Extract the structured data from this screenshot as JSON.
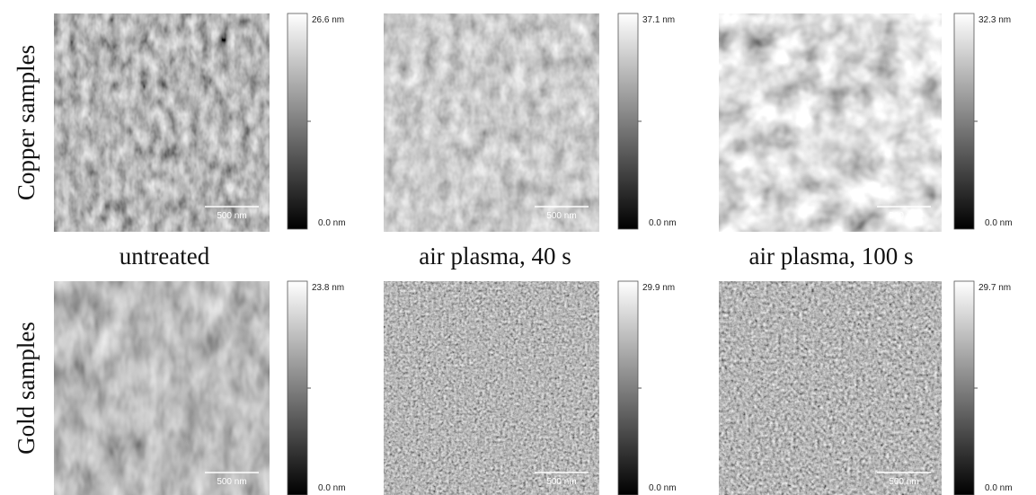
{
  "columns": [
    "untreated",
    "air plasma, 40 s",
    "air plasma, 100 s"
  ],
  "rows": [
    {
      "label": "Copper samples",
      "panels": [
        {
          "scale_bar": "500 nm",
          "colorbar_max": "26.6 nm",
          "colorbar_min": "0.0 nm"
        },
        {
          "scale_bar": "500 nm",
          "colorbar_max": "37.1 nm",
          "colorbar_min": "0.0 nm"
        },
        {
          "scale_bar": "500 nm",
          "colorbar_max": "32.3 nm",
          "colorbar_min": "0.0 nm"
        }
      ]
    },
    {
      "label": "Gold samples",
      "panels": [
        {
          "scale_bar": "500 nm",
          "colorbar_max": "23.8 nm",
          "colorbar_min": "0.0 nm"
        },
        {
          "scale_bar": "500 nm",
          "colorbar_max": "29.9 nm",
          "colorbar_min": "0.0 nm"
        },
        {
          "scale_bar": "500 nm",
          "colorbar_max": "29.7 nm",
          "colorbar_min": "0.0 nm"
        }
      ]
    }
  ]
}
